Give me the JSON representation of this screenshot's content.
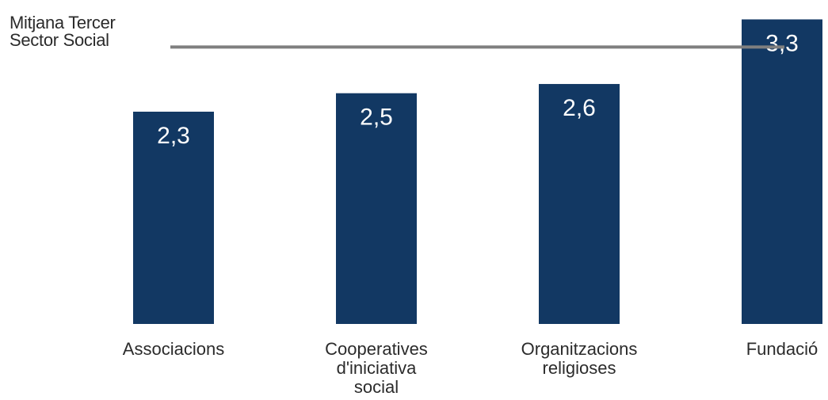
{
  "chart_data": {
    "type": "bar",
    "categories": [
      [
        "Associacions"
      ],
      [
        "Cooperatives",
        "d'iniciativa",
        "social"
      ],
      [
        "Organitzacions",
        "religioses"
      ],
      [
        "Fundació"
      ]
    ],
    "values": [
      2.3,
      2.5,
      2.6,
      3.3
    ],
    "value_labels": [
      "2,3",
      "2,5",
      "2,6",
      "3,3"
    ],
    "reference_line": {
      "label_lines": [
        "Mitjana Tercer",
        "Sector Social"
      ],
      "value": 3.0
    },
    "ylim": [
      0,
      3.45
    ],
    "grid": false,
    "colors": {
      "bar": "#123863",
      "bar_label": "#ffffff",
      "reference_line": "#7f7f7f",
      "text": "#2b2b2b"
    }
  }
}
